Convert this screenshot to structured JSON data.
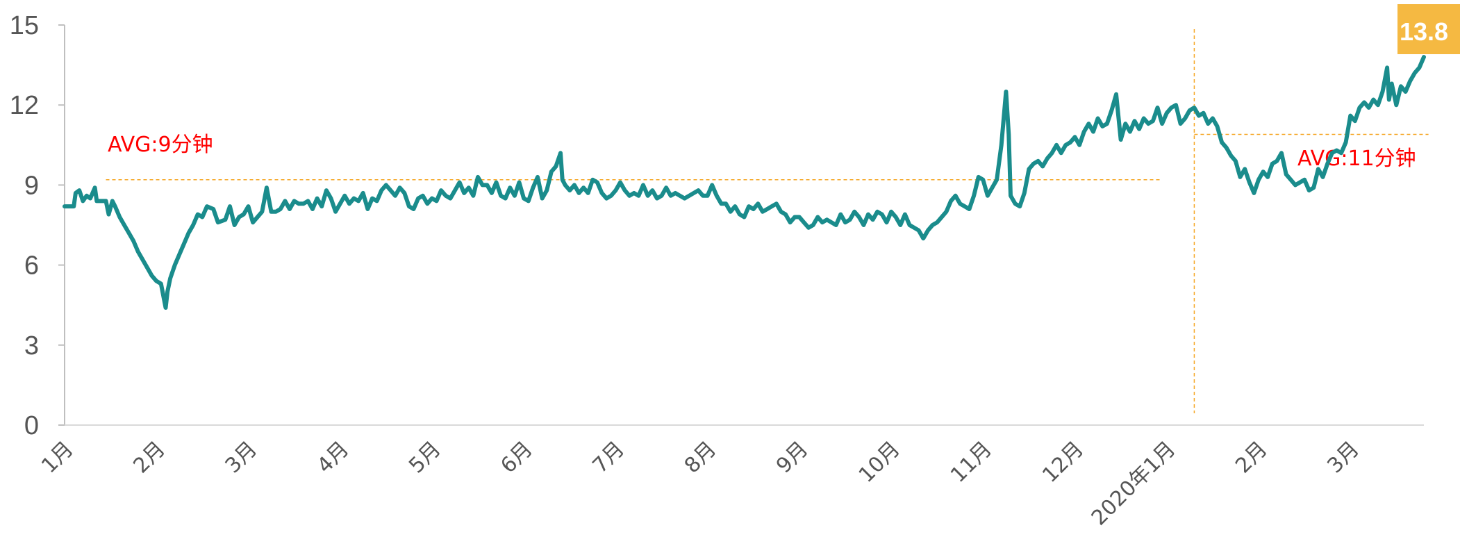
{
  "chart_data": {
    "type": "line",
    "title": "",
    "xlabel": "",
    "ylabel": "",
    "ylim": [
      0,
      15
    ],
    "y_ticks": [
      "0",
      "3",
      "6",
      "9",
      "12",
      "15"
    ],
    "x_ticks": [
      "1月",
      "2月",
      "3月",
      "4月",
      "5月",
      "6月",
      "7月",
      "8月",
      "9月",
      "10月",
      "11月",
      "12月",
      "2020年1月",
      "2月",
      "3月"
    ],
    "x_month_index_range": [
      0,
      14.8
    ],
    "grid": false,
    "legend": "none",
    "series": [
      {
        "color": "#1a8c8c",
        "points": [
          [
            0.0,
            8.2
          ],
          [
            0.1,
            8.2
          ],
          [
            0.12,
            8.7
          ],
          [
            0.16,
            8.8
          ],
          [
            0.2,
            8.4
          ],
          [
            0.24,
            8.6
          ],
          [
            0.28,
            8.5
          ],
          [
            0.33,
            8.9
          ],
          [
            0.35,
            8.4
          ],
          [
            0.4,
            8.4
          ],
          [
            0.45,
            8.4
          ],
          [
            0.48,
            7.9
          ],
          [
            0.52,
            8.4
          ],
          [
            0.55,
            8.2
          ],
          [
            0.6,
            7.8
          ],
          [
            0.65,
            7.5
          ],
          [
            0.7,
            7.2
          ],
          [
            0.75,
            6.9
          ],
          [
            0.8,
            6.5
          ],
          [
            0.85,
            6.2
          ],
          [
            0.9,
            5.9
          ],
          [
            0.95,
            5.6
          ],
          [
            1.0,
            5.4
          ],
          [
            1.05,
            5.3
          ],
          [
            1.1,
            4.4
          ],
          [
            1.12,
            5.0
          ],
          [
            1.15,
            5.5
          ],
          [
            1.2,
            6.0
          ],
          [
            1.25,
            6.4
          ],
          [
            1.3,
            6.8
          ],
          [
            1.35,
            7.2
          ],
          [
            1.4,
            7.5
          ],
          [
            1.45,
            7.9
          ],
          [
            1.5,
            7.8
          ],
          [
            1.55,
            8.2
          ],
          [
            1.62,
            8.1
          ],
          [
            1.67,
            7.6
          ],
          [
            1.75,
            7.7
          ],
          [
            1.8,
            8.2
          ],
          [
            1.85,
            7.5
          ],
          [
            1.9,
            7.8
          ],
          [
            1.95,
            7.9
          ],
          [
            2.0,
            8.2
          ],
          [
            2.05,
            7.6
          ],
          [
            2.1,
            7.8
          ],
          [
            2.15,
            8.0
          ],
          [
            2.2,
            8.9
          ],
          [
            2.25,
            8.0
          ],
          [
            2.3,
            8.0
          ],
          [
            2.35,
            8.1
          ],
          [
            2.4,
            8.4
          ],
          [
            2.45,
            8.1
          ],
          [
            2.5,
            8.4
          ],
          [
            2.55,
            8.3
          ],
          [
            2.6,
            8.3
          ],
          [
            2.65,
            8.4
          ],
          [
            2.7,
            8.1
          ],
          [
            2.75,
            8.5
          ],
          [
            2.8,
            8.2
          ],
          [
            2.85,
            8.8
          ],
          [
            2.9,
            8.5
          ],
          [
            2.95,
            8.0
          ],
          [
            3.0,
            8.3
          ],
          [
            3.05,
            8.6
          ],
          [
            3.1,
            8.3
          ],
          [
            3.15,
            8.5
          ],
          [
            3.2,
            8.4
          ],
          [
            3.25,
            8.7
          ],
          [
            3.3,
            8.1
          ],
          [
            3.35,
            8.5
          ],
          [
            3.4,
            8.4
          ],
          [
            3.45,
            8.8
          ],
          [
            3.5,
            9.0
          ],
          [
            3.55,
            8.8
          ],
          [
            3.6,
            8.6
          ],
          [
            3.65,
            8.9
          ],
          [
            3.7,
            8.7
          ],
          [
            3.75,
            8.2
          ],
          [
            3.8,
            8.1
          ],
          [
            3.85,
            8.5
          ],
          [
            3.9,
            8.6
          ],
          [
            3.95,
            8.3
          ],
          [
            4.0,
            8.5
          ],
          [
            4.05,
            8.4
          ],
          [
            4.1,
            8.8
          ],
          [
            4.15,
            8.6
          ],
          [
            4.2,
            8.5
          ],
          [
            4.25,
            8.8
          ],
          [
            4.3,
            9.1
          ],
          [
            4.35,
            8.7
          ],
          [
            4.4,
            8.9
          ],
          [
            4.45,
            8.6
          ],
          [
            4.5,
            9.3
          ],
          [
            4.55,
            9.0
          ],
          [
            4.6,
            9.0
          ],
          [
            4.65,
            8.7
          ],
          [
            4.7,
            9.1
          ],
          [
            4.75,
            8.6
          ],
          [
            4.8,
            8.5
          ],
          [
            4.85,
            8.9
          ],
          [
            4.9,
            8.6
          ],
          [
            4.95,
            9.1
          ],
          [
            5.0,
            8.5
          ],
          [
            5.05,
            8.4
          ],
          [
            5.1,
            8.9
          ],
          [
            5.15,
            9.3
          ],
          [
            5.2,
            8.5
          ],
          [
            5.25,
            8.8
          ],
          [
            5.3,
            9.5
          ],
          [
            5.35,
            9.7
          ],
          [
            5.4,
            10.2
          ],
          [
            5.42,
            9.2
          ],
          [
            5.45,
            9.0
          ],
          [
            5.5,
            8.8
          ],
          [
            5.55,
            9.0
          ],
          [
            5.6,
            8.7
          ],
          [
            5.65,
            8.9
          ],
          [
            5.7,
            8.7
          ],
          [
            5.75,
            9.2
          ],
          [
            5.8,
            9.1
          ],
          [
            5.85,
            8.7
          ],
          [
            5.9,
            8.5
          ],
          [
            5.95,
            8.6
          ],
          [
            6.0,
            8.8
          ],
          [
            6.05,
            9.1
          ],
          [
            6.1,
            8.8
          ],
          [
            6.15,
            8.6
          ],
          [
            6.2,
            8.7
          ],
          [
            6.25,
            8.6
          ],
          [
            6.3,
            9.0
          ],
          [
            6.35,
            8.6
          ],
          [
            6.4,
            8.8
          ],
          [
            6.45,
            8.5
          ],
          [
            6.5,
            8.6
          ],
          [
            6.55,
            8.9
          ],
          [
            6.6,
            8.6
          ],
          [
            6.65,
            8.7
          ],
          [
            6.7,
            8.6
          ],
          [
            6.75,
            8.5
          ],
          [
            6.8,
            8.6
          ],
          [
            6.85,
            8.7
          ],
          [
            6.9,
            8.8
          ],
          [
            6.95,
            8.6
          ],
          [
            7.0,
            8.6
          ],
          [
            7.05,
            9.0
          ],
          [
            7.1,
            8.6
          ],
          [
            7.15,
            8.3
          ],
          [
            7.2,
            8.3
          ],
          [
            7.25,
            8.0
          ],
          [
            7.3,
            8.2
          ],
          [
            7.35,
            7.9
          ],
          [
            7.4,
            7.8
          ],
          [
            7.45,
            8.2
          ],
          [
            7.5,
            8.1
          ],
          [
            7.55,
            8.3
          ],
          [
            7.6,
            8.0
          ],
          [
            7.65,
            8.1
          ],
          [
            7.7,
            8.2
          ],
          [
            7.75,
            8.3
          ],
          [
            7.8,
            8.0
          ],
          [
            7.85,
            7.9
          ],
          [
            7.9,
            7.6
          ],
          [
            7.95,
            7.8
          ],
          [
            8.0,
            7.8
          ],
          [
            8.05,
            7.6
          ],
          [
            8.1,
            7.4
          ],
          [
            8.15,
            7.5
          ],
          [
            8.2,
            7.8
          ],
          [
            8.25,
            7.6
          ],
          [
            8.3,
            7.7
          ],
          [
            8.35,
            7.6
          ],
          [
            8.4,
            7.5
          ],
          [
            8.45,
            7.9
          ],
          [
            8.5,
            7.6
          ],
          [
            8.55,
            7.7
          ],
          [
            8.6,
            8.0
          ],
          [
            8.65,
            7.8
          ],
          [
            8.7,
            7.5
          ],
          [
            8.75,
            7.9
          ],
          [
            8.8,
            7.7
          ],
          [
            8.85,
            8.0
          ],
          [
            8.9,
            7.9
          ],
          [
            8.95,
            7.6
          ],
          [
            9.0,
            8.0
          ],
          [
            9.05,
            7.8
          ],
          [
            9.1,
            7.5
          ],
          [
            9.15,
            7.9
          ],
          [
            9.2,
            7.5
          ],
          [
            9.25,
            7.4
          ],
          [
            9.3,
            7.3
          ],
          [
            9.35,
            7.0
          ],
          [
            9.4,
            7.3
          ],
          [
            9.45,
            7.5
          ],
          [
            9.5,
            7.6
          ],
          [
            9.55,
            7.8
          ],
          [
            9.6,
            8.0
          ],
          [
            9.65,
            8.4
          ],
          [
            9.7,
            8.6
          ],
          [
            9.75,
            8.3
          ],
          [
            9.8,
            8.2
          ],
          [
            9.85,
            8.1
          ],
          [
            9.9,
            8.6
          ],
          [
            9.95,
            9.3
          ],
          [
            10.0,
            9.2
          ],
          [
            10.05,
            8.6
          ],
          [
            10.1,
            8.9
          ],
          [
            10.15,
            9.2
          ],
          [
            10.2,
            10.5
          ],
          [
            10.25,
            12.5
          ],
          [
            10.28,
            10.9
          ],
          [
            10.3,
            8.6
          ],
          [
            10.35,
            8.3
          ],
          [
            10.4,
            8.2
          ],
          [
            10.45,
            8.7
          ],
          [
            10.5,
            9.6
          ],
          [
            10.55,
            9.8
          ],
          [
            10.6,
            9.9
          ],
          [
            10.65,
            9.7
          ],
          [
            10.7,
            10.0
          ],
          [
            10.75,
            10.2
          ],
          [
            10.8,
            10.5
          ],
          [
            10.85,
            10.2
          ],
          [
            10.9,
            10.5
          ],
          [
            10.95,
            10.6
          ],
          [
            11.0,
            10.8
          ],
          [
            11.05,
            10.5
          ],
          [
            11.1,
            11.0
          ],
          [
            11.15,
            11.3
          ],
          [
            11.2,
            11.0
          ],
          [
            11.25,
            11.5
          ],
          [
            11.3,
            11.2
          ],
          [
            11.35,
            11.3
          ],
          [
            11.4,
            11.8
          ],
          [
            11.45,
            12.4
          ],
          [
            11.5,
            10.7
          ],
          [
            11.55,
            11.3
          ],
          [
            11.6,
            11.0
          ],
          [
            11.65,
            11.4
          ],
          [
            11.7,
            11.1
          ],
          [
            11.75,
            11.5
          ],
          [
            11.8,
            11.3
          ],
          [
            11.85,
            11.4
          ],
          [
            11.9,
            11.9
          ],
          [
            11.95,
            11.3
          ],
          [
            12.0,
            11.7
          ],
          [
            12.05,
            11.9
          ],
          [
            12.1,
            12.0
          ],
          [
            12.15,
            11.3
          ],
          [
            12.2,
            11.5
          ],
          [
            12.25,
            11.8
          ],
          [
            12.3,
            11.9
          ],
          [
            12.35,
            11.6
          ],
          [
            12.4,
            11.7
          ],
          [
            12.45,
            11.3
          ],
          [
            12.5,
            11.5
          ],
          [
            12.55,
            11.2
          ],
          [
            12.6,
            10.6
          ],
          [
            12.65,
            10.4
          ],
          [
            12.7,
            10.1
          ],
          [
            12.75,
            9.9
          ],
          [
            12.8,
            9.3
          ],
          [
            12.85,
            9.6
          ],
          [
            12.9,
            9.1
          ],
          [
            12.95,
            8.7
          ],
          [
            13.0,
            9.2
          ],
          [
            13.05,
            9.5
          ],
          [
            13.1,
            9.3
          ],
          [
            13.15,
            9.8
          ],
          [
            13.2,
            9.9
          ],
          [
            13.25,
            10.2
          ],
          [
            13.3,
            9.4
          ],
          [
            13.35,
            9.2
          ],
          [
            13.4,
            9.0
          ],
          [
            13.45,
            9.1
          ],
          [
            13.5,
            9.2
          ],
          [
            13.55,
            8.8
          ],
          [
            13.6,
            8.9
          ],
          [
            13.65,
            9.6
          ],
          [
            13.7,
            9.3
          ],
          [
            13.75,
            9.8
          ],
          [
            13.8,
            10.2
          ],
          [
            13.85,
            10.3
          ],
          [
            13.9,
            10.2
          ],
          [
            13.95,
            10.6
          ],
          [
            14.0,
            11.6
          ],
          [
            14.05,
            11.4
          ],
          [
            14.1,
            11.9
          ],
          [
            14.15,
            12.1
          ],
          [
            14.2,
            11.9
          ],
          [
            14.25,
            12.2
          ],
          [
            14.3,
            12.0
          ],
          [
            14.35,
            12.5
          ],
          [
            14.4,
            13.4
          ],
          [
            14.42,
            12.2
          ],
          [
            14.45,
            12.8
          ],
          [
            14.5,
            12.0
          ],
          [
            14.55,
            12.7
          ],
          [
            14.6,
            12.5
          ],
          [
            14.65,
            12.9
          ],
          [
            14.7,
            13.2
          ],
          [
            14.75,
            13.4
          ],
          [
            14.8,
            13.8
          ]
        ]
      }
    ],
    "annotations": {
      "avg1": {
        "label": "AVG:9分钟",
        "value": 9.2,
        "x_start": 0.45,
        "x_end": 11.95,
        "color": "#f5a623"
      },
      "avg2": {
        "label": "AVG:11分钟",
        "value": 10.9,
        "x_start": 12.3,
        "x_end": 14.85,
        "color": "#f5a623"
      },
      "divider": {
        "x": 12.3,
        "color": "#f5a623"
      },
      "end_badge": {
        "label": "13.8",
        "color": "#f5b942"
      }
    }
  }
}
